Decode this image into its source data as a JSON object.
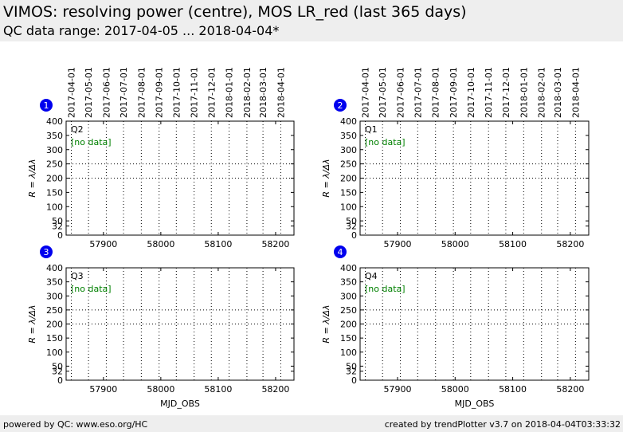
{
  "header": {
    "title": "VIMOS: resolving power (centre), MOS LR_red (last 365 days)",
    "subtitle": "QC data range: 2017-04-05 ... 2018-04-04*"
  },
  "footer": {
    "left": "powered by QC: www.eso.org/HC",
    "right": "created by trendPlotter v3.7 on 2018-04-04T03:33:32"
  },
  "colors": {
    "badge": "#0000ee",
    "no_data": "#008000",
    "grid": "#000000"
  },
  "chart_data": [
    {
      "type": "scatter",
      "badge": "1",
      "label": "Q2",
      "status": "[no data]",
      "xlabel": "",
      "ylabel": "R = λ/Δλ",
      "xlim": [
        57835,
        58232
      ],
      "ylim": [
        0,
        400
      ],
      "x_ticks": [
        57900,
        58000,
        58100,
        58200
      ],
      "y_ticks": [
        0,
        32,
        50,
        100,
        150,
        200,
        250,
        300,
        350,
        400
      ],
      "h_ref_lines": [
        200,
        250
      ],
      "top_dates": [
        "2017-04-01",
        "2017-05-01",
        "2017-06-01",
        "2017-07-01",
        "2017-08-01",
        "2017-09-01",
        "2017-10-01",
        "2017-11-01",
        "2017-12-01",
        "2018-01-01",
        "2018-02-01",
        "2018-03-01",
        "2018-04-01"
      ],
      "top_dates_mjd": [
        57844,
        57874,
        57905,
        57935,
        57966,
        57997,
        58027,
        58058,
        58088,
        58119,
        58150,
        58178,
        58209
      ],
      "series": []
    },
    {
      "type": "scatter",
      "badge": "2",
      "label": "Q1",
      "status": "[no data]",
      "xlabel": "",
      "ylabel": "R = λ/Δλ",
      "xlim": [
        57835,
        58232
      ],
      "ylim": [
        0,
        400
      ],
      "x_ticks": [
        57900,
        58000,
        58100,
        58200
      ],
      "y_ticks": [
        0,
        32,
        50,
        100,
        150,
        200,
        250,
        300,
        350,
        400
      ],
      "h_ref_lines": [
        200,
        250
      ],
      "top_dates": [
        "2017-04-01",
        "2017-05-01",
        "2017-06-01",
        "2017-07-01",
        "2017-08-01",
        "2017-09-01",
        "2017-10-01",
        "2017-11-01",
        "2017-12-01",
        "2018-01-01",
        "2018-02-01",
        "2018-03-01",
        "2018-04-01"
      ],
      "top_dates_mjd": [
        57844,
        57874,
        57905,
        57935,
        57966,
        57997,
        58027,
        58058,
        58088,
        58119,
        58150,
        58178,
        58209
      ],
      "series": []
    },
    {
      "type": "scatter",
      "badge": "3",
      "label": "Q3",
      "status": "[no data]",
      "xlabel": "MJD_OBS",
      "ylabel": "R = λ/Δλ",
      "xlim": [
        57835,
        58232
      ],
      "ylim": [
        0,
        400
      ],
      "x_ticks": [
        57900,
        58000,
        58100,
        58200
      ],
      "y_ticks": [
        0,
        32,
        50,
        100,
        150,
        200,
        250,
        300,
        350,
        400
      ],
      "h_ref_lines": [
        200,
        250
      ],
      "top_dates": [],
      "top_dates_mjd": [
        57844,
        57874,
        57905,
        57935,
        57966,
        57997,
        58027,
        58058,
        58088,
        58119,
        58150,
        58178,
        58209
      ],
      "series": []
    },
    {
      "type": "scatter",
      "badge": "4",
      "label": "Q4",
      "status": "[no data]",
      "xlabel": "MJD_OBS",
      "ylabel": "R = λ/Δλ",
      "xlim": [
        57835,
        58232
      ],
      "ylim": [
        0,
        400
      ],
      "x_ticks": [
        57900,
        58000,
        58100,
        58200
      ],
      "y_ticks": [
        0,
        32,
        50,
        100,
        150,
        200,
        250,
        300,
        350,
        400
      ],
      "h_ref_lines": [
        200,
        250
      ],
      "top_dates": [],
      "top_dates_mjd": [
        57844,
        57874,
        57905,
        57935,
        57966,
        57997,
        58027,
        58058,
        58088,
        58119,
        58150,
        58178,
        58209
      ],
      "series": []
    }
  ]
}
